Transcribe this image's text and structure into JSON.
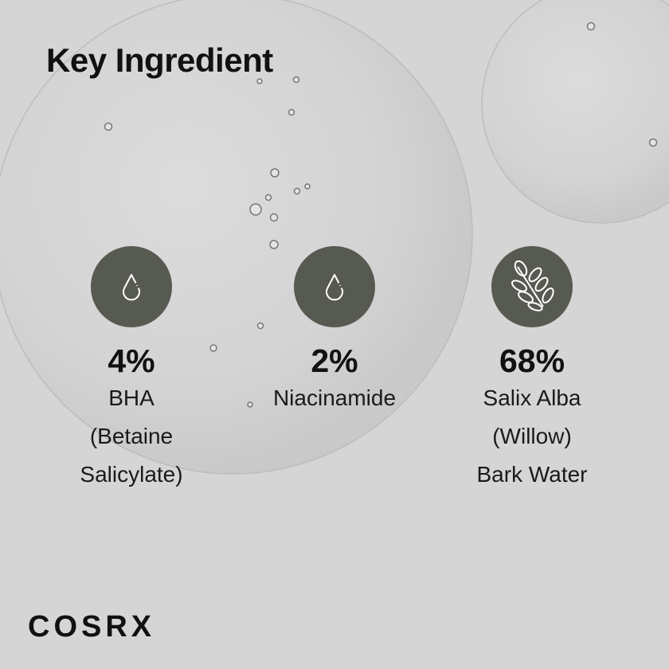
{
  "title": "Key Ingredient",
  "icon_color": "#575a51",
  "ingredients": [
    {
      "icon": "water-drop-icon",
      "percent": "4%",
      "lines": [
        "BHA",
        "(Betaine",
        "Salicylate)"
      ]
    },
    {
      "icon": "water-drop-icon",
      "percent": "2%",
      "lines": [
        "Niacinamide"
      ]
    },
    {
      "icon": "leaf-branch-icon",
      "percent": "68%",
      "lines": [
        "Salix Alba",
        "(Willow)",
        "Bark Water"
      ]
    }
  ],
  "brand": "COSRX"
}
